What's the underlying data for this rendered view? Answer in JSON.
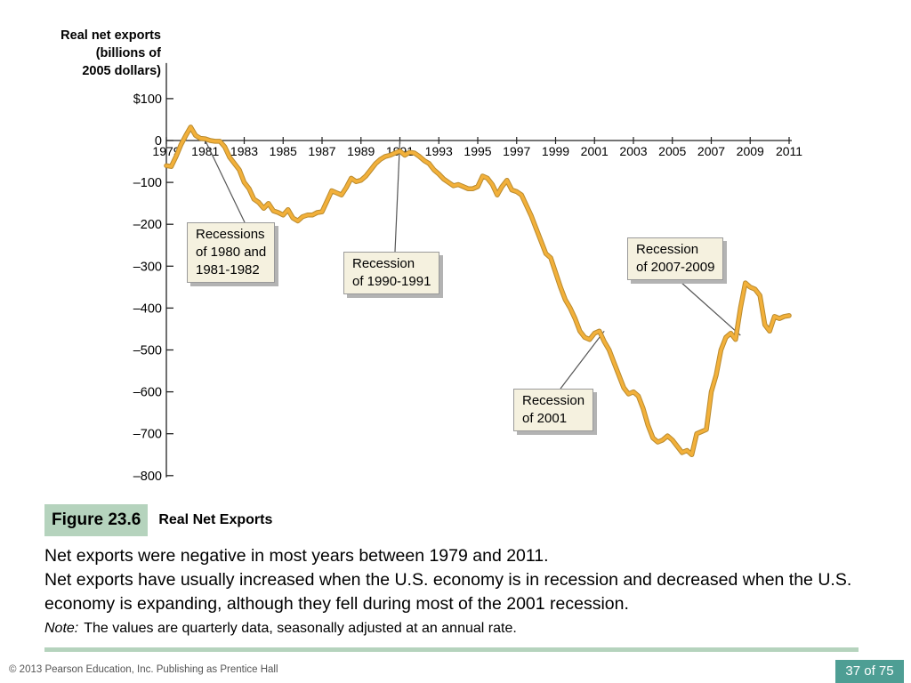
{
  "chart_data": {
    "type": "line",
    "ylabel": "Real net exports\n(billions of\n2005 dollars)",
    "xlim": [
      1979,
      2011
    ],
    "ylim": [
      -800,
      100
    ],
    "yticks": [
      100,
      0,
      -100,
      -200,
      -300,
      -400,
      -500,
      -600,
      -700,
      -800
    ],
    "ytick_labels": [
      "$100",
      "0",
      "–100",
      "–200",
      "–300",
      "–400",
      "–500",
      "–600",
      "–700",
      "–800"
    ],
    "xticks": [
      1979,
      1981,
      1983,
      1985,
      1987,
      1989,
      1991,
      1993,
      1995,
      1997,
      1999,
      2001,
      2003,
      2005,
      2007,
      2009,
      2011
    ],
    "line_color": "#f2b03a",
    "series": [
      {
        "x": [
          1979.0,
          1979.25,
          1979.5,
          1979.75,
          1980.0,
          1980.25,
          1980.5,
          1980.75,
          1981.0,
          1981.25,
          1981.5,
          1981.75,
          1982.0,
          1982.25,
          1982.5,
          1982.75,
          1983.0,
          1983.25,
          1983.5,
          1983.75,
          1984.0,
          1984.25,
          1984.5,
          1984.75,
          1985.0,
          1985.25,
          1985.5,
          1985.75,
          1986.0,
          1986.25,
          1986.5,
          1986.75,
          1987.0,
          1987.25,
          1987.5,
          1987.75,
          1988.0,
          1988.25,
          1988.5,
          1988.75,
          1989.0,
          1989.25,
          1989.5,
          1989.75,
          1990.0,
          1990.25,
          1990.5,
          1990.75,
          1991.0,
          1991.25,
          1991.5,
          1991.75,
          1992.0,
          1992.25,
          1992.5,
          1992.75,
          1993.0,
          1993.25,
          1993.5,
          1993.75,
          1994.0,
          1994.25,
          1994.5,
          1994.75,
          1995.0,
          1995.25,
          1995.5,
          1995.75,
          1996.0,
          1996.25,
          1996.5,
          1996.75,
          1997.0,
          1997.25,
          1997.5,
          1997.75,
          1998.0,
          1998.25,
          1998.5,
          1998.75,
          1999.0,
          1999.25,
          1999.5,
          1999.75,
          2000.0,
          2000.25,
          2000.5,
          2000.75,
          2001.0,
          2001.25,
          2001.5,
          2001.75,
          2002.0,
          2002.25,
          2002.5,
          2002.75,
          2003.0,
          2003.25,
          2003.5,
          2003.75,
          2004.0,
          2004.25,
          2004.5,
          2004.75,
          2005.0,
          2005.25,
          2005.5,
          2005.75,
          2006.0,
          2006.25,
          2006.5,
          2006.75,
          2007.0,
          2007.25,
          2007.5,
          2007.75,
          2008.0,
          2008.25,
          2008.5,
          2008.75,
          2009.0,
          2009.25,
          2009.5,
          2009.75,
          2010.0,
          2010.25,
          2010.5,
          2010.75,
          2011.0
        ],
        "y": [
          -60,
          -62,
          -38,
          -10,
          12,
          32,
          12,
          5,
          4,
          0,
          -2,
          -2,
          -15,
          -40,
          -55,
          -70,
          -100,
          -115,
          -140,
          -148,
          -162,
          -150,
          -168,
          -172,
          -178,
          -165,
          -185,
          -192,
          -182,
          -178,
          -178,
          -172,
          -170,
          -145,
          -120,
          -125,
          -130,
          -112,
          -90,
          -98,
          -95,
          -85,
          -70,
          -55,
          -45,
          -38,
          -35,
          -30,
          -25,
          -35,
          -28,
          -30,
          -38,
          -48,
          -55,
          -70,
          -80,
          -92,
          -100,
          -108,
          -105,
          -110,
          -115,
          -115,
          -110,
          -85,
          -90,
          -105,
          -130,
          -110,
          -95,
          -118,
          -122,
          -130,
          -155,
          -180,
          -210,
          -240,
          -270,
          -280,
          -315,
          -350,
          -380,
          -400,
          -425,
          -455,
          -470,
          -475,
          -460,
          -455,
          -480,
          -500,
          -530,
          -560,
          -590,
          -605,
          -600,
          -610,
          -640,
          -680,
          -710,
          -720,
          -715,
          -705,
          -715,
          -730,
          -745,
          -740,
          -750,
          -700,
          -695,
          -690,
          -600,
          -560,
          -500,
          -470,
          -460,
          -475,
          -400,
          -340,
          -350,
          -355,
          -370,
          -440,
          -455,
          -420,
          -425,
          -420,
          -418
        ]
      }
    ],
    "annotations": [
      {
        "text": "Recessions\nof 1980 and\n1981-1982",
        "x": 1981,
        "y": 0
      },
      {
        "text": "Recession\nof 1990-1991",
        "x": 1991,
        "y": 0
      },
      {
        "text": "Recession\nof 2001",
        "x": 2001.5,
        "y": -455
      },
      {
        "text": "Recession\nof 2007-2009",
        "x": 2008.5,
        "y": -465
      }
    ]
  },
  "figure": {
    "badge": "Figure 23.6",
    "title": "Real Net Exports"
  },
  "caption": {
    "line1": "Net exports were negative in most years between 1979 and 2011.",
    "line2": "Net exports have usually increased when the U.S. economy is in recession and decreased when the U.S. economy is expanding, although they fell during most of the 2001 recession.",
    "note_label": "Note:",
    "note_text": "The values are quarterly data, seasonally adjusted at an annual rate."
  },
  "footer": {
    "copyright": "© 2013 Pearson Education, Inc. Publishing as Prentice Hall",
    "page": "37 of 75"
  }
}
